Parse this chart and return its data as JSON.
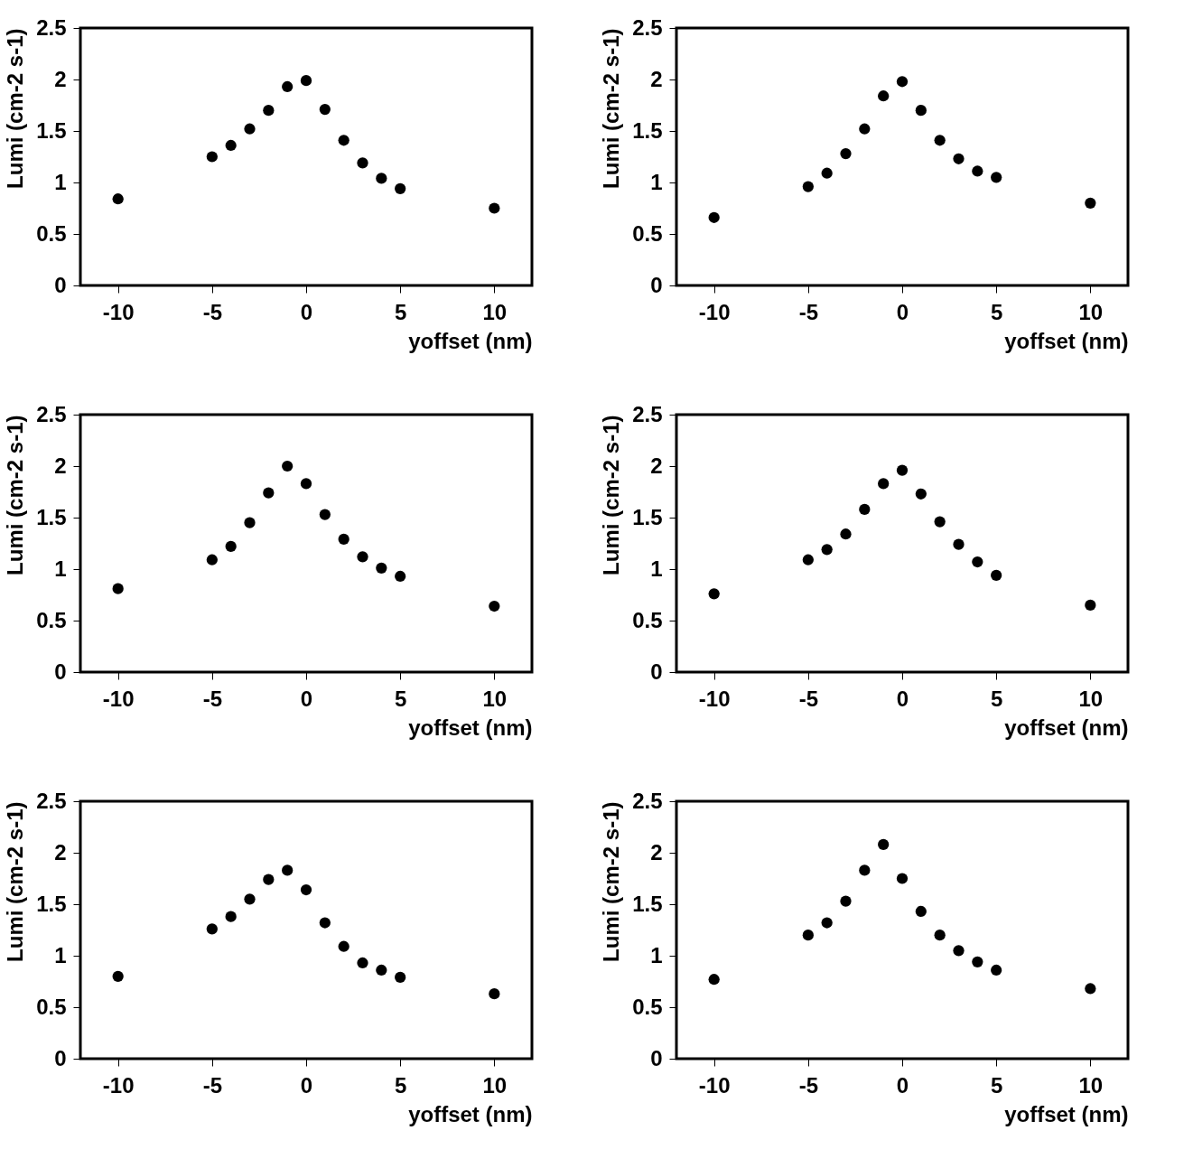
{
  "chart_data": [
    {
      "type": "scatter",
      "xlabel": "yoffset (nm)",
      "ylabel": "Lumi (cm-2 s-1)",
      "x": [
        -10,
        -5,
        -4,
        -3,
        -2,
        -1,
        0,
        1,
        2,
        3,
        4,
        5,
        10
      ],
      "values": [
        0.84,
        1.25,
        1.36,
        1.52,
        1.7,
        1.93,
        1.99,
        1.71,
        1.41,
        1.19,
        1.04,
        0.94,
        0.75
      ],
      "color": "#000000",
      "marker": "circle",
      "xlim": [
        -12,
        12
      ],
      "ylim": [
        0,
        2.5
      ],
      "xticks": [
        -10,
        -5,
        0,
        5,
        10
      ],
      "yticks": [
        0,
        0.5,
        1,
        1.5,
        2,
        2.5
      ]
    },
    {
      "type": "scatter",
      "xlabel": "yoffset (nm)",
      "ylabel": "Lumi (cm-2 s-1)",
      "x": [
        -10,
        -5,
        -4,
        -3,
        -2,
        -1,
        0,
        1,
        2,
        3,
        4,
        5,
        10
      ],
      "values": [
        0.66,
        0.96,
        1.09,
        1.28,
        1.52,
        1.84,
        1.98,
        1.7,
        1.41,
        1.23,
        1.11,
        1.05,
        0.8
      ],
      "color": "#000000",
      "marker": "circle",
      "xlim": [
        -12,
        12
      ],
      "ylim": [
        0,
        2.5
      ],
      "xticks": [
        -10,
        -5,
        0,
        5,
        10
      ],
      "yticks": [
        0,
        0.5,
        1,
        1.5,
        2,
        2.5
      ]
    },
    {
      "type": "scatter",
      "xlabel": "yoffset (nm)",
      "ylabel": "Lumi (cm-2 s-1)",
      "x": [
        -10,
        -5,
        -4,
        -3,
        -2,
        -1,
        0,
        1,
        2,
        3,
        4,
        5,
        10
      ],
      "values": [
        0.81,
        1.09,
        1.22,
        1.45,
        1.74,
        2.0,
        1.83,
        1.53,
        1.29,
        1.12,
        1.01,
        0.93,
        0.64
      ],
      "color": "#000000",
      "marker": "circle",
      "xlim": [
        -12,
        12
      ],
      "ylim": [
        0,
        2.5
      ],
      "xticks": [
        -10,
        -5,
        0,
        5,
        10
      ],
      "yticks": [
        0,
        0.5,
        1,
        1.5,
        2,
        2.5
      ]
    },
    {
      "type": "scatter",
      "xlabel": "yoffset (nm)",
      "ylabel": "Lumi (cm-2 s-1)",
      "x": [
        -10,
        -5,
        -4,
        -3,
        -2,
        -1,
        0,
        1,
        2,
        3,
        4,
        5,
        10
      ],
      "values": [
        0.76,
        1.09,
        1.19,
        1.34,
        1.58,
        1.83,
        1.96,
        1.73,
        1.46,
        1.24,
        1.07,
        0.94,
        0.65
      ],
      "color": "#000000",
      "marker": "circle",
      "xlim": [
        -12,
        12
      ],
      "ylim": [
        0,
        2.5
      ],
      "xticks": [
        -10,
        -5,
        0,
        5,
        10
      ],
      "yticks": [
        0,
        0.5,
        1,
        1.5,
        2,
        2.5
      ]
    },
    {
      "type": "scatter",
      "xlabel": "yoffset (nm)",
      "ylabel": "Lumi (cm-2 s-1)",
      "x": [
        -10,
        -5,
        -4,
        -3,
        -2,
        -1,
        0,
        1,
        2,
        3,
        4,
        5,
        10
      ],
      "values": [
        0.8,
        1.26,
        1.38,
        1.55,
        1.74,
        1.83,
        1.64,
        1.32,
        1.09,
        0.93,
        0.86,
        0.79,
        0.63
      ],
      "color": "#000000",
      "marker": "circle",
      "xlim": [
        -12,
        12
      ],
      "ylim": [
        0,
        2.5
      ],
      "xticks": [
        -10,
        -5,
        0,
        5,
        10
      ],
      "yticks": [
        0,
        0.5,
        1,
        1.5,
        2,
        2.5
      ]
    },
    {
      "type": "scatter",
      "xlabel": "yoffset (nm)",
      "ylabel": "Lumi (cm-2 s-1)",
      "x": [
        -10,
        -5,
        -4,
        -3,
        -2,
        -1,
        0,
        1,
        2,
        3,
        4,
        5,
        10
      ],
      "values": [
        0.77,
        1.2,
        1.32,
        1.53,
        1.83,
        2.08,
        1.75,
        1.43,
        1.2,
        1.05,
        0.94,
        0.86,
        0.68
      ],
      "color": "#000000",
      "marker": "circle",
      "xlim": [
        -12,
        12
      ],
      "ylim": [
        0,
        2.5
      ],
      "xticks": [
        -10,
        -5,
        0,
        5,
        10
      ],
      "yticks": [
        0,
        0.5,
        1,
        1.5,
        2,
        2.5
      ]
    }
  ]
}
